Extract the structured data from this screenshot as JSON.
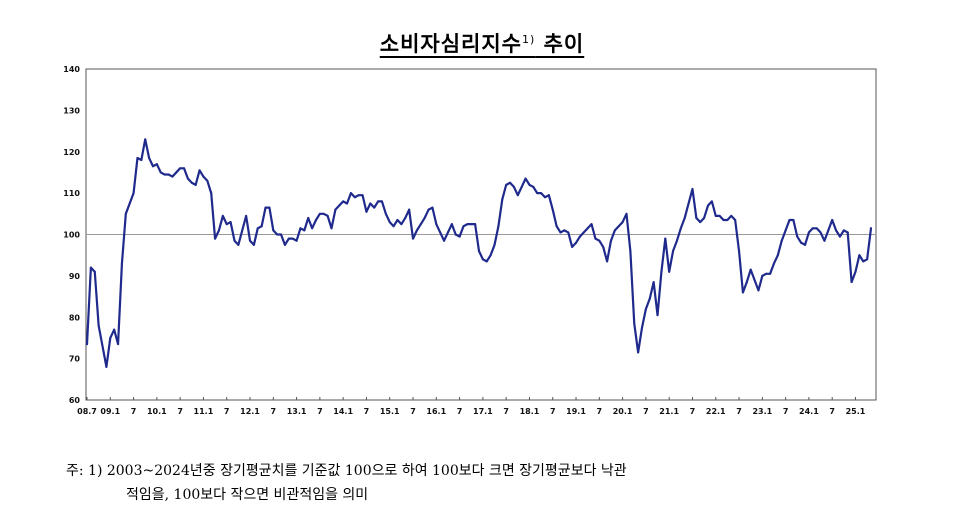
{
  "title": {
    "main": "소비자심리지수",
    "superscript": "1)",
    "suffix": " 추이"
  },
  "footnote": {
    "line1": "주: 1) 2003~2024년중 장기평균치를 기준값 100으로 하여 100보다 크면 장기평균보다 낙관",
    "line2": "적임을, 100보다 작으면 비관적임을 의미"
  },
  "colors": {
    "line": "#1f2a8c",
    "baseline": "#9a9a9a",
    "axis": "#555555"
  },
  "chart_data": {
    "type": "line",
    "title": "소비자심리지수 추이",
    "xlabel": "",
    "ylabel": "",
    "ylim": [
      60,
      140
    ],
    "yticks": [
      60,
      70,
      80,
      90,
      100,
      110,
      120,
      130,
      140
    ],
    "reference_line": 100,
    "x_start": "2008-07",
    "x_tick_labels": [
      {
        "label": "08.7",
        "month_index": 0
      },
      {
        "label": "09.1",
        "month_index": 6
      },
      {
        "label": "7",
        "month_index": 12
      },
      {
        "label": "10.1",
        "month_index": 18
      },
      {
        "label": "7",
        "month_index": 24
      },
      {
        "label": "11.1",
        "month_index": 30
      },
      {
        "label": "7",
        "month_index": 36
      },
      {
        "label": "12.1",
        "month_index": 42
      },
      {
        "label": "7",
        "month_index": 48
      },
      {
        "label": "13.1",
        "month_index": 54
      },
      {
        "label": "7",
        "month_index": 60
      },
      {
        "label": "14.1",
        "month_index": 66
      },
      {
        "label": "7",
        "month_index": 72
      },
      {
        "label": "15.1",
        "month_index": 78
      },
      {
        "label": "7",
        "month_index": 84
      },
      {
        "label": "16.1",
        "month_index": 90
      },
      {
        "label": "7",
        "month_index": 96
      },
      {
        "label": "17.1",
        "month_index": 102
      },
      {
        "label": "7",
        "month_index": 108
      },
      {
        "label": "18.1",
        "month_index": 114
      },
      {
        "label": "7",
        "month_index": 120
      },
      {
        "label": "19.1",
        "month_index": 126
      },
      {
        "label": "7",
        "month_index": 132
      },
      {
        "label": "20.1",
        "month_index": 138
      },
      {
        "label": "7",
        "month_index": 144
      },
      {
        "label": "21.1",
        "month_index": 150
      },
      {
        "label": "7",
        "month_index": 156
      },
      {
        "label": "22.1",
        "month_index": 162
      },
      {
        "label": "7",
        "month_index": 168
      },
      {
        "label": "23.1",
        "month_index": 174
      },
      {
        "label": "7",
        "month_index": 180
      },
      {
        "label": "24.1",
        "month_index": 186
      },
      {
        "label": "7",
        "month_index": 192
      },
      {
        "label": "25.1",
        "month_index": 198
      }
    ],
    "series": [
      {
        "name": "소비자심리지수",
        "values": [
          73.5,
          92,
          91,
          78,
          73,
          68,
          75,
          77,
          73.5,
          93,
          105,
          107.5,
          110,
          118.5,
          118,
          123,
          118.5,
          116.5,
          117,
          115,
          114.5,
          114.5,
          114,
          115,
          116,
          116,
          113.5,
          112.5,
          112,
          115.5,
          114,
          113,
          110,
          99,
          101,
          104.5,
          102.5,
          103,
          98.5,
          97.5,
          101,
          104.5,
          98.5,
          97.5,
          101.5,
          102,
          106.5,
          106.5,
          101,
          100,
          100,
          97.5,
          99,
          99,
          98.5,
          101.5,
          101,
          104,
          101.5,
          103.5,
          105,
          105,
          104.5,
          101.5,
          106,
          107,
          108,
          107.5,
          110,
          109,
          109.5,
          109.5,
          105.5,
          107.5,
          106.5,
          108,
          108,
          105,
          103,
          102,
          103.5,
          102.5,
          104,
          106,
          99,
          101,
          102.5,
          104,
          106,
          106.5,
          102.5,
          100.5,
          98.5,
          100.5,
          102.5,
          100,
          99.5,
          102,
          102.5,
          102.5,
          102.5,
          96,
          94,
          93.5,
          95,
          97.5,
          102,
          108.5,
          112,
          112.5,
          111.5,
          109.5,
          111.5,
          113.5,
          112,
          111.5,
          110,
          110,
          109,
          109.5,
          106,
          102,
          100.5,
          101,
          100.5,
          97,
          98,
          99.5,
          100.5,
          101.5,
          102.5,
          99,
          98.5,
          97,
          93.5,
          98.5,
          101,
          102,
          103,
          105,
          96,
          78.5,
          71.5,
          77.5,
          82,
          84.5,
          88.5,
          80.5,
          91,
          99,
          91,
          96,
          98.5,
          101.5,
          104,
          107.5,
          111,
          104,
          103,
          104,
          107,
          108,
          104.5,
          104.5,
          103.5,
          103.5,
          104.5,
          103.5,
          96,
          86,
          88.5,
          91.5,
          89,
          86.5,
          90,
          90.5,
          90.5,
          93,
          95,
          98.5,
          101,
          103.5,
          103.5,
          99.5,
          98,
          97.5,
          100.5,
          101.5,
          101.5,
          100.5,
          98.5,
          101,
          103.5,
          101,
          99.5,
          101,
          100.5,
          88.5,
          91,
          95,
          93.5,
          94,
          101.5
        ]
      }
    ]
  }
}
